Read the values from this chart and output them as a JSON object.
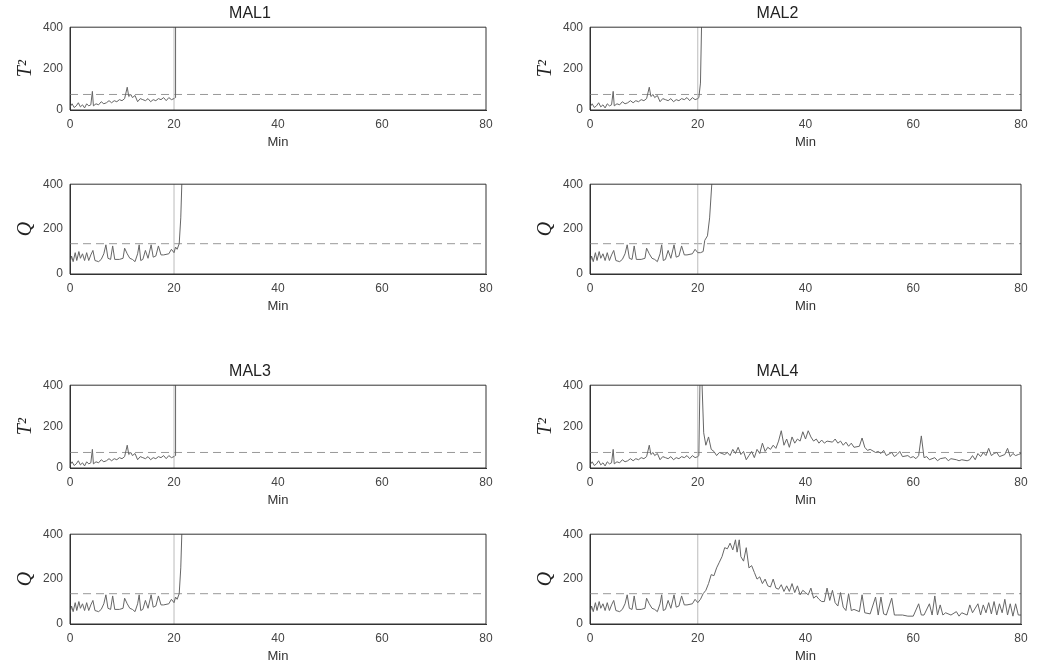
{
  "chart_data": [
    {
      "type": "line",
      "title": "MAL1",
      "xlabel": "Min",
      "ylabel": "T²",
      "xlim": [
        0,
        80
      ],
      "xticks": [
        0,
        20,
        40,
        60,
        80
      ],
      "ylim": [
        0,
        400
      ],
      "yticks": [
        0,
        200,
        400
      ],
      "marker": "none",
      "line_style": "solid",
      "ref_lines": [
        {
          "axis": "y",
          "value": 75,
          "color": "#999999",
          "line_style": "dashed"
        },
        {
          "axis": "x",
          "value": 20,
          "color": "#bbbbbb",
          "line_style": "solid"
        }
      ],
      "series": [
        {
          "color": "#666666",
          "x": [
            0,
            0.4,
            0.8,
            1.2,
            1.6,
            2,
            2.4,
            2.8,
            3.2,
            3.6,
            4,
            4.3,
            4.5,
            5,
            5.5,
            6,
            6.5,
            7,
            7.5,
            8,
            8.5,
            9,
            9.5,
            10,
            10.5,
            11,
            11.3,
            11.7,
            12,
            12.5,
            13,
            13.5,
            14,
            14.5,
            15,
            15.5,
            16,
            16.5,
            17,
            17.5,
            18,
            18.5,
            19,
            19.5,
            20,
            20.2,
            20.3
          ],
          "values": [
            15,
            30,
            12,
            20,
            35,
            15,
            25,
            10,
            30,
            20,
            25,
            90,
            20,
            30,
            25,
            40,
            30,
            35,
            45,
            35,
            45,
            40,
            50,
            45,
            55,
            110,
            65,
            75,
            60,
            70,
            40,
            55,
            50,
            45,
            55,
            40,
            50,
            45,
            55,
            50,
            60,
            45,
            60,
            50,
            55,
            60,
            400
          ]
        }
      ]
    },
    {
      "type": "line",
      "title": "MAL2",
      "xlabel": "Min",
      "ylabel": "T²",
      "xlim": [
        0,
        80
      ],
      "xticks": [
        0,
        20,
        40,
        60,
        80
      ],
      "ylim": [
        0,
        400
      ],
      "yticks": [
        0,
        200,
        400
      ],
      "marker": "none",
      "line_style": "solid",
      "ref_lines": [
        {
          "axis": "y",
          "value": 75,
          "color": "#999999",
          "line_style": "dashed"
        },
        {
          "axis": "x",
          "value": 20,
          "color": "#bbbbbb",
          "line_style": "solid"
        }
      ],
      "series": [
        {
          "color": "#666666",
          "x": [
            0,
            0.4,
            0.8,
            1.2,
            1.6,
            2,
            2.4,
            2.8,
            3.2,
            3.6,
            4,
            4.3,
            4.5,
            5,
            5.5,
            6,
            6.5,
            7,
            7.5,
            8,
            8.5,
            9,
            9.5,
            10,
            10.5,
            11,
            11.3,
            11.7,
            12,
            12.5,
            13,
            13.5,
            14,
            14.5,
            15,
            15.5,
            16,
            16.5,
            17,
            17.5,
            18,
            18.5,
            19,
            19.5,
            20,
            20.2,
            20.5,
            20.7
          ],
          "values": [
            15,
            30,
            12,
            20,
            35,
            15,
            25,
            10,
            30,
            20,
            25,
            90,
            20,
            30,
            25,
            40,
            30,
            35,
            45,
            35,
            45,
            40,
            50,
            45,
            55,
            110,
            65,
            75,
            60,
            70,
            40,
            55,
            50,
            45,
            55,
            40,
            50,
            45,
            55,
            50,
            60,
            45,
            60,
            50,
            55,
            60,
            130,
            400
          ]
        }
      ]
    },
    {
      "type": "line",
      "xlabel": "Min",
      "ylabel": "Q",
      "xlim": [
        0,
        80
      ],
      "xticks": [
        0,
        20,
        40,
        60,
        80
      ],
      "ylim": [
        0,
        400
      ],
      "yticks": [
        0,
        200,
        400
      ],
      "marker": "none",
      "line_style": "solid",
      "ref_lines": [
        {
          "axis": "y",
          "value": 135,
          "color": "#999999",
          "line_style": "dashed"
        },
        {
          "axis": "x",
          "value": 20,
          "color": "#bbbbbb",
          "line_style": "solid"
        }
      ],
      "series": [
        {
          "color": "#666666",
          "x": [
            0,
            0.3,
            0.6,
            1,
            1.3,
            1.7,
            2,
            2.4,
            2.8,
            3.2,
            3.6,
            4,
            4.4,
            4.8,
            5.5,
            6,
            6.5,
            6.9,
            7.3,
            7.8,
            8.2,
            8.6,
            9.5,
            10.2,
            10.5,
            11,
            11.5,
            12,
            12.5,
            13,
            13.3,
            13.6,
            14,
            14.5,
            15,
            15.6,
            16,
            16.5,
            17,
            17.5,
            18,
            19,
            19.5,
            20,
            20.3,
            20.6,
            21,
            21.3,
            21.5
          ],
          "values": [
            50,
            80,
            55,
            95,
            60,
            100,
            70,
            90,
            60,
            95,
            60,
            85,
            105,
            60,
            55,
            65,
            90,
            130,
            70,
            65,
            125,
            65,
            65,
            70,
            115,
            90,
            70,
            65,
            55,
            90,
            130,
            60,
            65,
            105,
            70,
            130,
            75,
            80,
            125,
            85,
            85,
            90,
            110,
            95,
            120,
            110,
            135,
            250,
            400
          ]
        }
      ]
    },
    {
      "type": "line",
      "xlabel": "Min",
      "ylabel": "Q",
      "xlim": [
        0,
        80
      ],
      "xticks": [
        0,
        20,
        40,
        60,
        80
      ],
      "ylim": [
        0,
        400
      ],
      "yticks": [
        0,
        200,
        400
      ],
      "marker": "none",
      "line_style": "solid",
      "ref_lines": [
        {
          "axis": "y",
          "value": 135,
          "color": "#999999",
          "line_style": "dashed"
        },
        {
          "axis": "x",
          "value": 20,
          "color": "#bbbbbb",
          "line_style": "solid"
        }
      ],
      "series": [
        {
          "color": "#666666",
          "x": [
            0,
            0.3,
            0.6,
            1,
            1.3,
            1.7,
            2,
            2.4,
            2.8,
            3.2,
            3.6,
            4,
            4.4,
            4.8,
            5.5,
            6,
            6.5,
            6.9,
            7.3,
            7.8,
            8.2,
            8.6,
            9.5,
            10.2,
            10.5,
            11,
            11.5,
            12,
            12.5,
            13,
            13.3,
            13.6,
            14,
            14.5,
            15,
            15.6,
            16,
            16.5,
            17,
            17.5,
            18,
            19,
            19.5,
            20,
            20.5,
            21,
            21.3,
            21.8,
            22.2,
            22.6
          ],
          "values": [
            50,
            80,
            55,
            95,
            60,
            100,
            70,
            90,
            60,
            95,
            60,
            85,
            105,
            60,
            55,
            65,
            90,
            130,
            70,
            65,
            125,
            65,
            65,
            70,
            115,
            90,
            70,
            65,
            55,
            90,
            130,
            60,
            65,
            105,
            70,
            130,
            75,
            80,
            125,
            85,
            85,
            90,
            110,
            95,
            95,
            100,
            150,
            170,
            250,
            400
          ]
        }
      ]
    },
    {
      "type": "line",
      "title": "MAL3",
      "xlabel": "Min",
      "ylabel": "T²",
      "xlim": [
        0,
        80
      ],
      "xticks": [
        0,
        20,
        40,
        60,
        80
      ],
      "ylim": [
        0,
        400
      ],
      "yticks": [
        0,
        200,
        400
      ],
      "marker": "none",
      "line_style": "solid",
      "ref_lines": [
        {
          "axis": "y",
          "value": 75,
          "color": "#999999",
          "line_style": "dashed"
        },
        {
          "axis": "x",
          "value": 20,
          "color": "#bbbbbb",
          "line_style": "solid"
        }
      ],
      "series": [
        {
          "color": "#666666",
          "x": [
            0,
            0.4,
            0.8,
            1.2,
            1.6,
            2,
            2.4,
            2.8,
            3.2,
            3.6,
            4,
            4.3,
            4.5,
            5,
            5.5,
            6,
            6.5,
            7,
            7.5,
            8,
            8.5,
            9,
            9.5,
            10,
            10.5,
            11,
            11.3,
            11.7,
            12,
            12.5,
            13,
            13.5,
            14,
            14.5,
            15,
            15.5,
            16,
            16.5,
            17,
            17.5,
            18,
            18.5,
            19,
            19.5,
            20,
            20.2,
            20.3
          ],
          "values": [
            15,
            30,
            12,
            20,
            35,
            15,
            25,
            10,
            30,
            20,
            25,
            90,
            20,
            30,
            25,
            40,
            30,
            35,
            45,
            35,
            45,
            40,
            50,
            45,
            55,
            110,
            65,
            75,
            60,
            70,
            40,
            55,
            50,
            45,
            55,
            40,
            50,
            45,
            55,
            50,
            60,
            45,
            60,
            50,
            55,
            60,
            400
          ]
        }
      ]
    },
    {
      "type": "line",
      "title": "MAL4",
      "xlabel": "Min",
      "ylabel": "T²",
      "xlim": [
        0,
        80
      ],
      "xticks": [
        0,
        20,
        40,
        60,
        80
      ],
      "ylim": [
        0,
        400
      ],
      "yticks": [
        0,
        200,
        400
      ],
      "marker": "none",
      "line_style": "solid",
      "ref_lines": [
        {
          "axis": "y",
          "value": 75,
          "color": "#999999",
          "line_style": "dashed"
        },
        {
          "axis": "x",
          "value": 20,
          "color": "#bbbbbb",
          "line_style": "solid"
        }
      ],
      "series": [
        {
          "color": "#666666",
          "x": [
            0,
            0.4,
            0.8,
            1.2,
            1.6,
            2,
            2.4,
            2.8,
            3.2,
            3.6,
            4,
            4.3,
            4.5,
            5,
            5.5,
            6,
            6.5,
            7,
            7.5,
            8,
            8.5,
            9,
            9.5,
            10,
            10.5,
            11,
            11.3,
            11.7,
            12,
            12.5,
            13,
            13.5,
            14,
            14.5,
            15,
            15.5,
            16,
            16.5,
            17,
            17.5,
            18,
            18.5,
            19,
            19.5,
            20,
            20.2,
            20.4,
            20.6,
            20.8,
            21.1,
            21.5,
            22,
            22.5,
            23,
            23.5,
            24,
            25,
            25.5,
            26,
            26.5,
            27,
            27.5,
            28,
            28.5,
            29,
            29.5,
            30,
            30.5,
            31,
            31.5,
            32,
            32.5,
            33,
            33.5,
            34,
            34.5,
            35,
            35.5,
            36,
            36.5,
            37,
            37.5,
            38,
            38.5,
            39,
            39.5,
            40,
            40.5,
            41,
            41.5,
            42,
            42.5,
            43,
            43.5,
            44,
            45,
            45.5,
            46,
            46.5,
            47,
            47.5,
            48,
            48.5,
            49,
            50,
            50.5,
            51,
            51.5,
            52,
            53,
            53.5,
            54,
            54.5,
            55,
            56,
            56.5,
            57,
            57.5,
            58,
            59,
            59.5,
            60,
            60.5,
            61,
            61.5,
            62,
            62.5,
            63,
            64,
            64.5,
            65,
            66,
            66.5,
            67,
            68,
            68.5,
            69,
            70,
            70.5,
            71,
            71.5,
            72,
            72.5,
            73,
            73.5,
            74,
            74.5,
            75,
            75.5,
            76,
            77,
            77.5,
            78,
            78.5,
            79,
            79.5,
            80
          ],
          "values": [
            15,
            30,
            12,
            20,
            35,
            15,
            25,
            10,
            30,
            20,
            25,
            90,
            20,
            30,
            25,
            40,
            30,
            35,
            45,
            35,
            45,
            40,
            50,
            45,
            55,
            110,
            65,
            75,
            60,
            70,
            40,
            55,
            50,
            45,
            55,
            40,
            50,
            45,
            55,
            50,
            60,
            45,
            60,
            50,
            55,
            60,
            400,
            null,
            400,
            170,
            110,
            150,
            90,
            80,
            60,
            75,
            65,
            75,
            60,
            90,
            70,
            100,
            65,
            80,
            40,
            60,
            80,
            50,
            90,
            70,
            120,
            80,
            100,
            90,
            110,
            95,
            130,
            180,
            110,
            140,
            100,
            150,
            120,
            140,
            130,
            175,
            140,
            180,
            150,
            130,
            140,
            120,
            135,
            120,
            130,
            125,
            140,
            120,
            130,
            110,
            125,
            105,
            120,
            100,
            105,
            145,
            100,
            85,
            90,
            75,
            80,
            70,
            85,
            60,
            75,
            55,
            65,
            80,
            55,
            60,
            50,
            55,
            45,
            60,
            155,
            50,
            55,
            40,
            50,
            35,
            45,
            50,
            35,
            45,
            40,
            35,
            40,
            35,
            40,
            60,
            40,
            70,
            55,
            75,
            60,
            95,
            60,
            70,
            75,
            55,
            65,
            95,
            55,
            70,
            60,
            65,
            70
          ]
        }
      ]
    },
    {
      "type": "line",
      "xlabel": "Min",
      "ylabel": "Q",
      "xlim": [
        0,
        80
      ],
      "xticks": [
        0,
        20,
        40,
        60,
        80
      ],
      "ylim": [
        0,
        400
      ],
      "yticks": [
        0,
        200,
        400
      ],
      "marker": "none",
      "line_style": "solid",
      "ref_lines": [
        {
          "axis": "y",
          "value": 135,
          "color": "#999999",
          "line_style": "dashed"
        },
        {
          "axis": "x",
          "value": 20,
          "color": "#bbbbbb",
          "line_style": "solid"
        }
      ],
      "series": [
        {
          "color": "#666666",
          "x": [
            0,
            0.3,
            0.6,
            1,
            1.3,
            1.7,
            2,
            2.4,
            2.8,
            3.2,
            3.6,
            4,
            4.4,
            4.8,
            5.5,
            6,
            6.5,
            6.9,
            7.3,
            7.8,
            8.2,
            8.6,
            9.5,
            10.2,
            10.5,
            11,
            11.5,
            12,
            12.5,
            13,
            13.3,
            13.6,
            14,
            14.5,
            15,
            15.6,
            16,
            16.5,
            17,
            17.5,
            18,
            19,
            19.5,
            20,
            20.3,
            20.6,
            21,
            21.3,
            21.5
          ],
          "values": [
            50,
            80,
            55,
            95,
            60,
            100,
            70,
            90,
            60,
            95,
            60,
            85,
            105,
            60,
            55,
            65,
            90,
            130,
            70,
            65,
            125,
            65,
            65,
            70,
            115,
            90,
            70,
            65,
            55,
            90,
            130,
            60,
            65,
            105,
            70,
            130,
            75,
            80,
            125,
            85,
            85,
            90,
            110,
            95,
            120,
            110,
            135,
            250,
            400
          ]
        }
      ]
    },
    {
      "type": "line",
      "xlabel": "Min",
      "ylabel": "Q",
      "xlim": [
        0,
        80
      ],
      "xticks": [
        0,
        20,
        40,
        60,
        80
      ],
      "ylim": [
        0,
        400
      ],
      "yticks": [
        0,
        200,
        400
      ],
      "marker": "none",
      "line_style": "solid",
      "ref_lines": [
        {
          "axis": "y",
          "value": 135,
          "color": "#999999",
          "line_style": "dashed"
        },
        {
          "axis": "x",
          "value": 20,
          "color": "#bbbbbb",
          "line_style": "solid"
        }
      ],
      "series": [
        {
          "color": "#666666",
          "x": [
            0,
            0.3,
            0.6,
            1,
            1.3,
            1.7,
            2,
            2.4,
            2.8,
            3.2,
            3.6,
            4,
            4.4,
            4.8,
            5.5,
            6,
            6.5,
            6.9,
            7.3,
            7.8,
            8.2,
            8.6,
            9.5,
            10.2,
            10.5,
            11,
            11.5,
            12,
            12.5,
            13,
            13.3,
            13.6,
            14,
            14.5,
            15,
            15.6,
            16,
            16.5,
            17,
            17.5,
            18,
            19,
            19.5,
            20,
            20.5,
            21,
            21.5,
            22,
            22.5,
            23,
            23.5,
            24,
            24.5,
            25,
            25.5,
            26,
            26.5,
            27,
            27.3,
            27.7,
            28,
            28.5,
            29,
            29.5,
            30,
            30.5,
            31,
            31.5,
            32,
            32.5,
            33,
            33.5,
            34,
            34.5,
            35,
            35.5,
            36,
            36.5,
            37,
            37.5,
            38,
            38.5,
            39,
            39.5,
            40,
            40.5,
            41,
            41.5,
            42,
            42.5,
            43,
            43.5,
            44,
            44.5,
            45,
            45.5,
            46,
            46.5,
            47,
            47.5,
            48,
            48.5,
            49,
            50,
            50.5,
            51,
            52,
            53,
            53.5,
            54,
            54.5,
            55,
            56,
            56.5,
            57,
            58,
            59,
            60,
            61,
            61.5,
            62,
            63,
            63.5,
            64,
            64.5,
            65,
            65.5,
            66,
            67,
            68,
            68.5,
            69,
            70,
            70.5,
            71,
            72,
            72.5,
            73,
            73.5,
            74,
            74.5,
            75,
            75.5,
            76,
            76.5,
            77,
            77.5,
            78,
            78.5,
            79,
            79.5,
            80
          ],
          "values": [
            50,
            80,
            55,
            95,
            60,
            100,
            70,
            90,
            60,
            95,
            60,
            85,
            105,
            60,
            55,
            65,
            90,
            130,
            70,
            65,
            125,
            65,
            65,
            70,
            115,
            90,
            70,
            65,
            55,
            90,
            130,
            60,
            65,
            105,
            70,
            130,
            75,
            80,
            125,
            85,
            85,
            90,
            110,
            95,
            110,
            135,
            150,
            180,
            220,
            215,
            250,
            275,
            300,
            340,
            335,
            360,
            330,
            375,
            320,
            375,
            300,
            280,
            340,
            250,
            260,
            230,
            200,
            210,
            180,
            200,
            170,
            165,
            200,
            160,
            155,
            175,
            145,
            170,
            145,
            180,
            140,
            170,
            130,
            150,
            140,
            130,
            160,
            115,
            125,
            110,
            100,
            100,
            160,
            105,
            150,
            95,
            80,
            140,
            75,
            60,
            135,
            60,
            65,
            55,
            130,
            50,
            45,
            120,
            40,
            120,
            45,
            40,
            115,
            40,
            40,
            40,
            35,
            35,
            90,
            40,
            40,
            90,
            40,
            125,
            40,
            85,
            40,
            50,
            40,
            55,
            35,
            50,
            40,
            85,
            50,
            90,
            40,
            85,
            50,
            95,
            45,
            100,
            40,
            90,
            50,
            110,
            40,
            90,
            35,
            90,
            40,
            40
          ]
        }
      ]
    }
  ]
}
